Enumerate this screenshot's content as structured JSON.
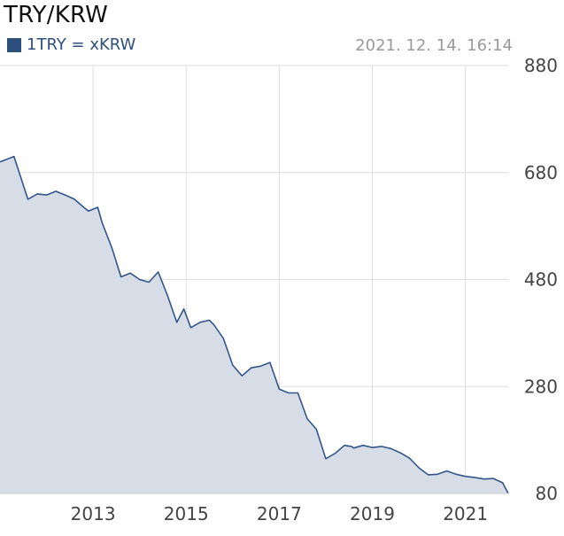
{
  "chart_data": {
    "type": "area",
    "title": "TRY/KRW",
    "series": [
      {
        "name": "1TRY = xKRW",
        "x": [
          2011.0,
          2011.3,
          2011.6,
          2011.8,
          2012.0,
          2012.2,
          2012.4,
          2012.6,
          2012.8,
          2012.9,
          2013.1,
          2013.2,
          2013.4,
          2013.6,
          2013.8,
          2014.0,
          2014.2,
          2014.4,
          2014.6,
          2014.8,
          2014.95,
          2015.1,
          2015.3,
          2015.5,
          2015.6,
          2015.8,
          2016.0,
          2016.2,
          2016.4,
          2016.6,
          2016.8,
          2017.0,
          2017.2,
          2017.4,
          2017.6,
          2017.8,
          2018.0,
          2018.2,
          2018.4,
          2018.55,
          2018.6,
          2018.8,
          2019.0,
          2019.2,
          2019.4,
          2019.6,
          2019.8,
          2020.0,
          2020.2,
          2020.4,
          2020.6,
          2020.8,
          2021.0,
          2021.2,
          2021.4,
          2021.6,
          2021.8,
          2021.92
        ],
        "values": [
          700,
          710,
          630,
          640,
          638,
          645,
          638,
          630,
          615,
          608,
          615,
          585,
          540,
          485,
          492,
          480,
          475,
          494,
          450,
          400,
          425,
          390,
          400,
          404,
          395,
          370,
          320,
          300,
          315,
          318,
          325,
          275,
          268,
          268,
          220,
          200,
          145,
          155,
          170,
          168,
          165,
          170,
          166,
          168,
          164,
          156,
          146,
          128,
          115,
          116,
          122,
          116,
          112,
          110,
          107,
          108,
          100,
          80
        ]
      }
    ],
    "xlabel": "",
    "ylabel": "",
    "x_ticks": [
      "2013",
      "2015",
      "2017",
      "2019",
      "2021"
    ],
    "y_ticks": [
      "880",
      "680",
      "480",
      "280",
      "80"
    ],
    "xlim": [
      2011.0,
      2021.92
    ],
    "ylim": [
      80,
      880
    ],
    "grid": true,
    "legend_position": "top-left"
  },
  "header": {
    "timestamp": "2021. 12. 14. 16:14"
  },
  "colors": {
    "line": "#33568a",
    "fill": "#d6dde7",
    "grid": "#dedede",
    "legend_swatch": "#2f4f7f"
  }
}
